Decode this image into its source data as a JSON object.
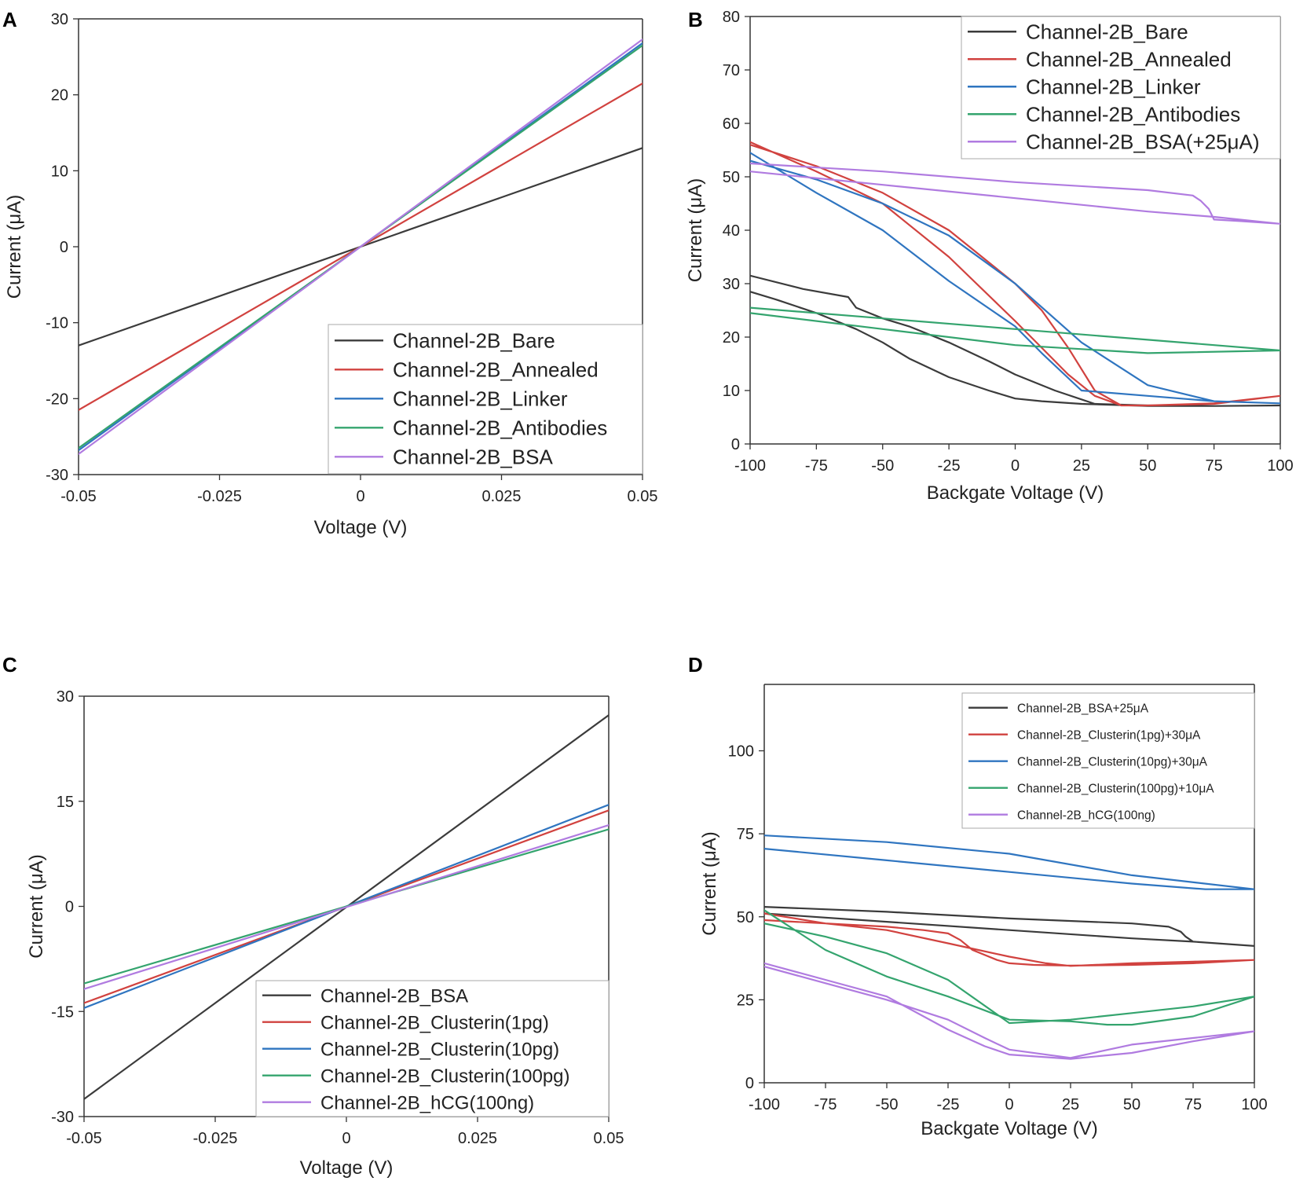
{
  "colors": {
    "black": "#3b3b3b",
    "red": "#d1423f",
    "blue": "#2f75c0",
    "green": "#34a46e",
    "purple": "#b07be0"
  },
  "chart_data": [
    {
      "panel": "A",
      "type": "line",
      "xlabel": "Voltage (V)",
      "ylabel": "Current (μA)",
      "xlim": [
        -0.05,
        0.05
      ],
      "ylim": [
        -30,
        30
      ],
      "xticks": [
        -0.05,
        -0.025,
        0,
        0.025,
        0.05
      ],
      "xtick_labels": [
        "-0.05",
        "-0.025",
        "0",
        "0.025",
        "0.05"
      ],
      "yticks": [
        -30,
        -20,
        -10,
        0,
        10,
        20,
        30
      ],
      "ytick_labels": [
        "-30",
        "-20",
        "-10",
        "0",
        "10",
        "20",
        "30"
      ],
      "legend_position": "bottom-right",
      "series": [
        {
          "name": "Channel-2B_Bare",
          "color": "black",
          "x": [
            -0.05,
            0.05
          ],
          "y": [
            -13,
            13
          ]
        },
        {
          "name": "Channel-2B_Annealed",
          "color": "red",
          "x": [
            -0.05,
            0.05
          ],
          "y": [
            -21.5,
            21.5
          ]
        },
        {
          "name": "Channel-2B_Linker",
          "color": "blue",
          "x": [
            -0.05,
            0.05
          ],
          "y": [
            -26.8,
            26.8
          ]
        },
        {
          "name": "Channel-2B_Antibodies",
          "color": "green",
          "x": [
            -0.05,
            0.05
          ],
          "y": [
            -26.5,
            26.5
          ]
        },
        {
          "name": "Channel-2B_BSA",
          "color": "purple",
          "x": [
            -0.05,
            0.05
          ],
          "y": [
            -27.3,
            27.3
          ]
        }
      ]
    },
    {
      "panel": "B",
      "type": "line",
      "xlabel": "Backgate Voltage (V)",
      "ylabel": "Current (μA)",
      "xlim": [
        -100,
        100
      ],
      "ylim": [
        0,
        80
      ],
      "xticks": [
        -100,
        -75,
        -50,
        -25,
        0,
        25,
        50,
        75,
        100
      ],
      "xtick_labels": [
        "-100",
        "-75",
        "-50",
        "-25",
        "0",
        "25",
        "50",
        "75",
        "100"
      ],
      "yticks": [
        0,
        10,
        20,
        30,
        40,
        50,
        60,
        70,
        80
      ],
      "ytick_labels": [
        "0",
        "10",
        "20",
        "30",
        "40",
        "50",
        "60",
        "70",
        "80"
      ],
      "legend_position": "top-right",
      "series": [
        {
          "name": "Channel-2B_Bare",
          "color": "black",
          "x": [
            -100,
            -80,
            -63,
            -60,
            -55,
            -50,
            -40,
            -25,
            -10,
            0,
            15,
            30,
            50,
            75,
            100,
            75,
            50,
            25,
            10,
            0,
            -10,
            -25,
            -40,
            -50,
            -60,
            -75,
            -90,
            -100
          ],
          "y": [
            31.5,
            29,
            27.5,
            25.5,
            24.5,
            23.5,
            22,
            19,
            15.5,
            13,
            10,
            7.5,
            7.2,
            7.1,
            7.2,
            7.1,
            7.1,
            7.5,
            8,
            8.5,
            10,
            12.5,
            16,
            19,
            21.5,
            24.5,
            27,
            28.5
          ]
        },
        {
          "name": "Channel-2B_Annealed",
          "color": "red",
          "x": [
            -100,
            -75,
            -50,
            -25,
            0,
            10,
            20,
            30,
            40,
            50,
            75,
            100,
            75,
            50,
            40,
            30,
            20,
            10,
            0,
            -25,
            -50,
            -75,
            -100
          ],
          "y": [
            56,
            52,
            47,
            40,
            30,
            25,
            18,
            10,
            7.2,
            7.2,
            7.5,
            9,
            7.6,
            7.2,
            7.2,
            9,
            13,
            18,
            23,
            35,
            45,
            51,
            56.5
          ]
        },
        {
          "name": "Channel-2B_Linker",
          "color": "blue",
          "x": [
            -100,
            -75,
            -50,
            -25,
            0,
            25,
            50,
            75,
            100,
            75,
            50,
            25,
            10,
            0,
            -25,
            -50,
            -75,
            -100
          ],
          "y": [
            53,
            49.5,
            45,
            39,
            30,
            19,
            11,
            8,
            7.6,
            8,
            9,
            10,
            17,
            22,
            30.5,
            40,
            47,
            54.5
          ]
        },
        {
          "name": "Channel-2B_Antibodies",
          "color": "green",
          "x": [
            -100,
            -50,
            0,
            50,
            100,
            50,
            0,
            -50,
            -100
          ],
          "y": [
            25.5,
            23.5,
            21.5,
            19.5,
            17.5,
            17,
            18.5,
            21.5,
            24.5
          ]
        },
        {
          "name": "Channel-2B_BSA(+25μA)",
          "color": "purple",
          "x": [
            -100,
            -50,
            0,
            50,
            67,
            70,
            73,
            75,
            85,
            100,
            75,
            50,
            0,
            -50,
            -100
          ],
          "y": [
            52.5,
            51,
            49,
            47.5,
            46.5,
            45.5,
            44,
            42,
            41.7,
            41.2,
            42.5,
            43.5,
            46,
            48.5,
            51
          ]
        }
      ]
    },
    {
      "panel": "C",
      "type": "line",
      "xlabel": "Voltage (V)",
      "ylabel": "Current (μA)",
      "xlim": [
        -0.05,
        0.05
      ],
      "ylim": [
        -30,
        30
      ],
      "xticks": [
        -0.05,
        -0.025,
        0,
        0.025,
        0.05
      ],
      "xtick_labels": [
        "-0.05",
        "-0.025",
        "0",
        "0.025",
        "0.05"
      ],
      "yticks": [
        -30,
        -15,
        0,
        15,
        30
      ],
      "ytick_labels": [
        "-30",
        "-15",
        "0",
        "15",
        "30"
      ],
      "legend_position": "bottom-right",
      "series": [
        {
          "name": "Channel-2B_BSA",
          "color": "black",
          "x": [
            -0.05,
            0.05
          ],
          "y": [
            -27.5,
            27.3
          ]
        },
        {
          "name": "Channel-2B_Clusterin(1pg)",
          "color": "red",
          "x": [
            -0.05,
            0.05
          ],
          "y": [
            -13.8,
            13.7
          ]
        },
        {
          "name": "Channel-2B_Clusterin(10pg)",
          "color": "blue",
          "x": [
            -0.05,
            0.05
          ],
          "y": [
            -14.5,
            14.5
          ]
        },
        {
          "name": "Channel-2B_Clusterin(100pg)",
          "color": "green",
          "x": [
            -0.05,
            0.05
          ],
          "y": [
            -11,
            11
          ]
        },
        {
          "name": "Channel-2B_hCG(100ng)",
          "color": "purple",
          "x": [
            -0.05,
            0.05
          ],
          "y": [
            -11.8,
            11.6
          ]
        }
      ]
    },
    {
      "panel": "D",
      "type": "line",
      "xlabel": "Backgate Voltage (V)",
      "ylabel": "Current (μA)",
      "xlim": [
        -100,
        100
      ],
      "ylim": [
        0,
        120
      ],
      "xticks": [
        -100,
        -75,
        -50,
        -25,
        0,
        25,
        50,
        75,
        100
      ],
      "xtick_labels": [
        "-100",
        "-75",
        "-50",
        "-25",
        "0",
        "25",
        "50",
        "75",
        "100"
      ],
      "yticks": [
        0,
        25,
        50,
        75,
        100
      ],
      "ytick_labels": [
        "0",
        "25",
        "50",
        "75",
        "100"
      ],
      "legend_position": "top-right",
      "series": [
        {
          "name": "Channel-2B_BSA+25μA",
          "color": "black",
          "x": [
            -100,
            -50,
            0,
            50,
            65,
            70,
            72,
            75,
            100,
            75,
            50,
            0,
            -50,
            -100
          ],
          "y": [
            53,
            51.5,
            49.5,
            48,
            47,
            45.5,
            44,
            42.5,
            41.2,
            42.5,
            43.5,
            46,
            48.5,
            51
          ]
        },
        {
          "name": "Channel-2B_Clusterin(1pg)+30μA",
          "color": "red",
          "x": [
            -100,
            -75,
            -50,
            -35,
            -25,
            -20,
            -15,
            -5,
            0,
            10,
            25,
            50,
            75,
            100,
            75,
            50,
            25,
            15,
            0,
            -25,
            -50,
            -75,
            -100
          ],
          "y": [
            51,
            48,
            47,
            46,
            45,
            43,
            40,
            37,
            36,
            35.5,
            35.3,
            35.5,
            36,
            37,
            36.5,
            36,
            35.2,
            36,
            38,
            42,
            46,
            48,
            49
          ]
        },
        {
          "name": "Channel-2B_Clusterin(10pg)+30μA",
          "color": "blue",
          "x": [
            -100,
            -50,
            0,
            50,
            100,
            80,
            50,
            0,
            -50,
            -100
          ],
          "y": [
            74.5,
            72.5,
            69,
            62.5,
            58.3,
            58.3,
            60,
            63.5,
            67,
            70.5
          ]
        },
        {
          "name": "Channel-2B_Clusterin(100pg)+10μA",
          "color": "green",
          "x": [
            -100,
            -75,
            -50,
            -25,
            0,
            25,
            40,
            50,
            75,
            100,
            75,
            50,
            25,
            0,
            -25,
            -50,
            -75,
            -100
          ],
          "y": [
            52,
            40,
            32,
            26,
            19,
            18.5,
            17.5,
            17.5,
            20,
            26,
            23,
            21,
            19,
            18,
            31,
            39,
            44,
            48
          ]
        },
        {
          "name": "Channel-2B_hCG(100ng)",
          "color": "purple",
          "x": [
            -100,
            -75,
            -50,
            -25,
            -10,
            0,
            25,
            50,
            75,
            100,
            75,
            50,
            25,
            0,
            -10,
            -25,
            -50,
            -75,
            -100
          ],
          "y": [
            36,
            31,
            26,
            16,
            11,
            8.5,
            7.2,
            9,
            12.5,
            15.5,
            13.5,
            11.5,
            7.5,
            10,
            13.5,
            19,
            25,
            30,
            35
          ]
        }
      ]
    }
  ]
}
